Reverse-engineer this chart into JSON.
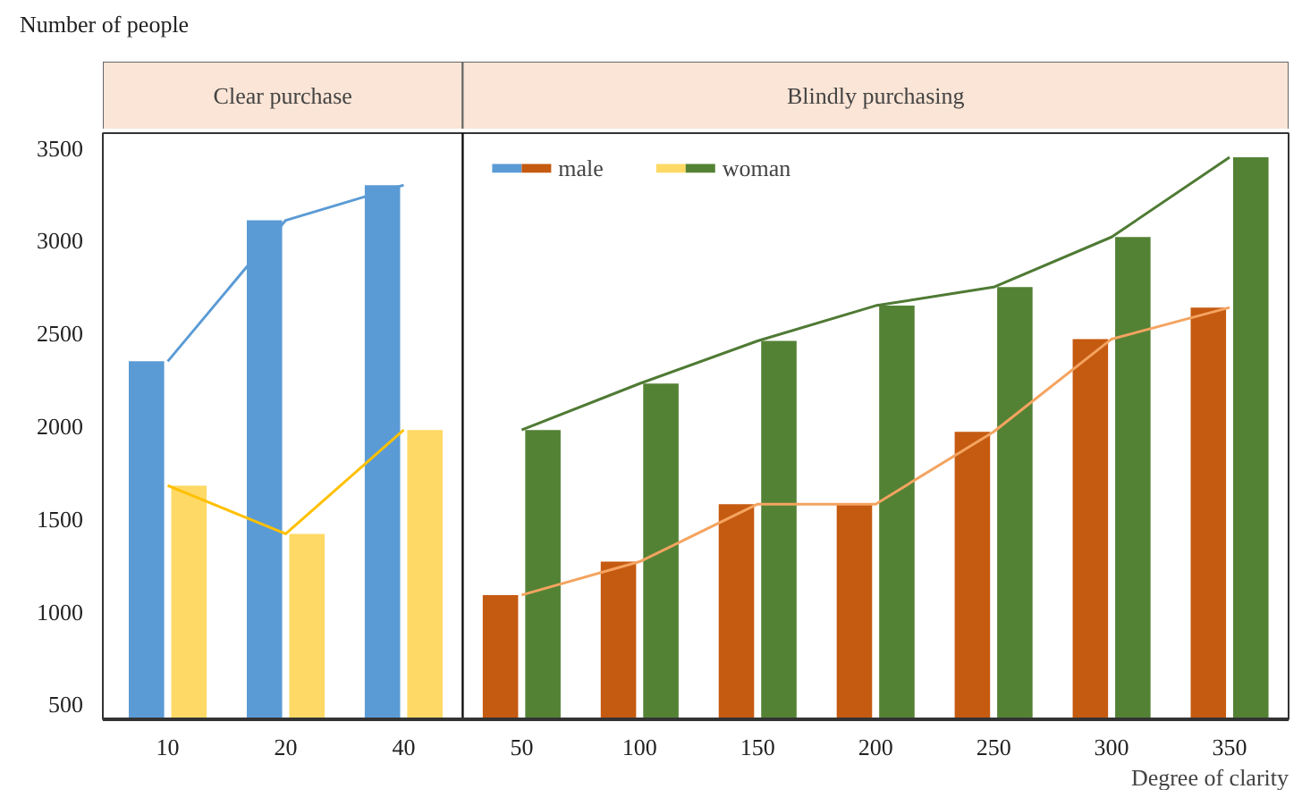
{
  "chart_data": {
    "type": "bar",
    "ylabel": "Number of people",
    "xlabel": "Degree of clarity",
    "categories": [
      "10",
      "20",
      "40",
      "50",
      "100",
      "150",
      "200",
      "250",
      "300",
      "350"
    ],
    "series": [
      {
        "name": "male",
        "colors": [
          "#5b9bd5",
          "#5b9bd5",
          "#5b9bd5",
          "#c55a11",
          "#c55a11",
          "#c55a11",
          "#c55a11",
          "#c55a11",
          "#c55a11",
          "#c55a11"
        ],
        "values": [
          2350,
          3110,
          3300,
          1090,
          1270,
          1580,
          1580,
          1970,
          2470,
          2640
        ]
      },
      {
        "name": "woman",
        "colors": [
          "#ffd966",
          "#ffd966",
          "#ffd966",
          "#548235",
          "#548235",
          "#548235",
          "#548235",
          "#548235",
          "#548235",
          "#548235"
        ],
        "values": [
          1680,
          1420,
          1980,
          1980,
          2230,
          2460,
          2650,
          2750,
          3020,
          3450
        ]
      },
      {
        "type": "line",
        "color": "#5b9bd5",
        "values": [
          2350,
          3110,
          3300,
          null,
          null,
          null,
          null,
          null,
          null,
          null
        ]
      },
      {
        "type": "line",
        "color": "#ffc000",
        "values": [
          1680,
          1420,
          1980,
          null,
          null,
          null,
          null,
          null,
          null,
          null
        ]
      },
      {
        "type": "line",
        "color": "#f4a460",
        "values": [
          null,
          null,
          null,
          1090,
          1270,
          1580,
          1580,
          1970,
          2470,
          2640
        ]
      },
      {
        "type": "line",
        "color": "#4f7a34",
        "values": [
          null,
          null,
          null,
          1980,
          2230,
          2460,
          2650,
          2750,
          3020,
          3450
        ]
      }
    ],
    "annotations": [
      "Clear purchase",
      "Blindly purchasing"
    ],
    "ylim": [
      420,
      3580
    ],
    "yticks": [
      500,
      1000,
      1500,
      2000,
      2500,
      3000,
      3500
    ],
    "legend": "top",
    "grid": false
  }
}
